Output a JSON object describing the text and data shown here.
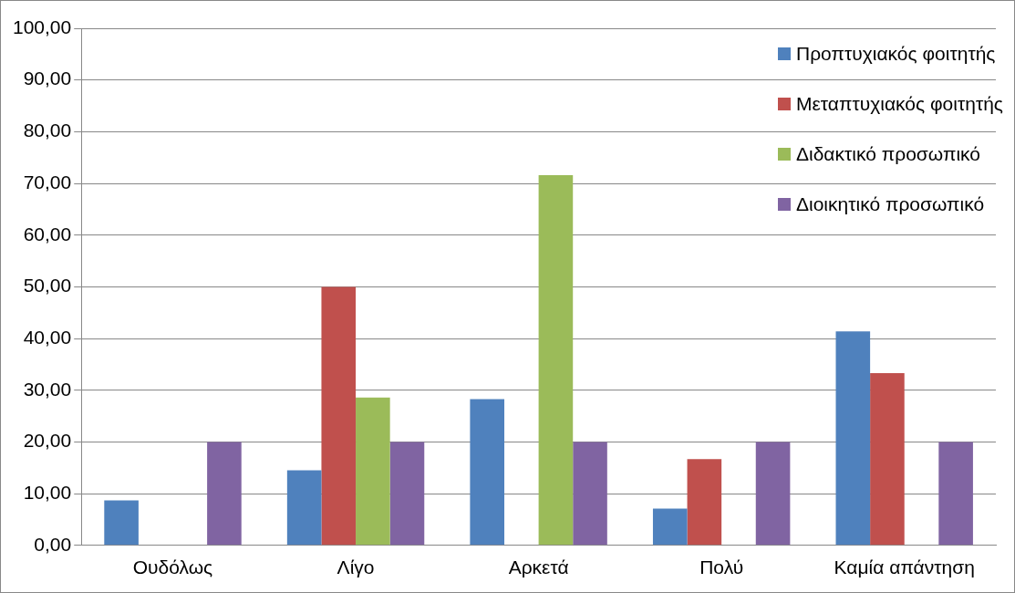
{
  "chart_data": {
    "type": "bar",
    "categories": [
      "Ουδόλως",
      "Λίγο",
      "Αρκετά",
      "Πολύ",
      "Καμία απάντηση"
    ],
    "series": [
      {
        "name": "Προπτυχιακός φοιτητής",
        "color": "#4f81bd",
        "values": [
          8.7,
          14.5,
          28.3,
          7.1,
          41.4
        ]
      },
      {
        "name": "Μεταπτυχιακός φοιτητής",
        "color": "#c0504d",
        "values": [
          0,
          50,
          0,
          16.7,
          33.3
        ]
      },
      {
        "name": "Διδακτικό προσωπικό",
        "color": "#9bbb59",
        "values": [
          0,
          28.6,
          71.6,
          0,
          0
        ]
      },
      {
        "name": "Διοικητικό προσωπικό",
        "color": "#8064a2",
        "values": [
          20,
          20,
          20,
          20,
          20
        ]
      }
    ],
    "ylim": [
      0,
      100
    ],
    "yticks": [
      {
        "value": 0,
        "label": "0,00"
      },
      {
        "value": 10,
        "label": "10,00"
      },
      {
        "value": 20,
        "label": "20,00"
      },
      {
        "value": 30,
        "label": "30,00"
      },
      {
        "value": 40,
        "label": "40,00"
      },
      {
        "value": 50,
        "label": "50,00"
      },
      {
        "value": 60,
        "label": "60,00"
      },
      {
        "value": 70,
        "label": "70,00"
      },
      {
        "value": 80,
        "label": "80,00"
      },
      {
        "value": 90,
        "label": "90,00"
      },
      {
        "value": 100,
        "label": "100,00"
      }
    ],
    "grid": "y",
    "legend": "top right"
  }
}
